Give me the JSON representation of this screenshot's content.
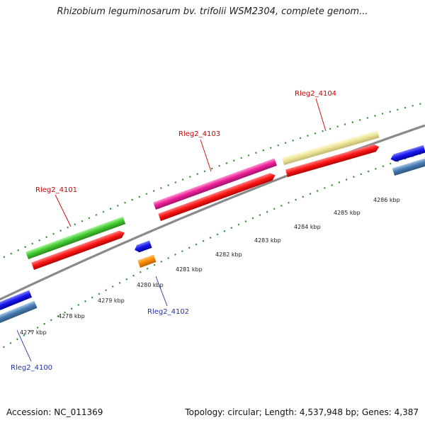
{
  "header": {
    "title": "Rhizobium leguminosarum bv. trifolii WSM2304, complete genom..."
  },
  "footer": {
    "accession": "Accession: NC_011369",
    "topology": "Topology: circular; Length: 4,537,948 bp; Genes: 4,387"
  },
  "map": {
    "backbone_color": "#808080",
    "tick_color": "#2e8b2e",
    "ticks_kbp": [
      "4277 kbp",
      "4278 kbp",
      "4279 kbp",
      "4280 kbp",
      "4281 kbp",
      "4282 kbp",
      "4283 kbp",
      "4284 kbp",
      "4285 kbp",
      "4286 kbp"
    ],
    "genes": [
      {
        "label": "Rleg2_4100",
        "strand": "reverse",
        "color": "#2233aa"
      },
      {
        "label": "Rleg2_4101",
        "strand": "forward",
        "color": "#cc0000"
      },
      {
        "label": "Rleg2_4102",
        "strand": "reverse",
        "color": "#2233aa"
      },
      {
        "label": "Rleg2_4103",
        "strand": "forward",
        "color": "#cc0000"
      },
      {
        "label": "Rleg2_4104",
        "strand": "forward",
        "color": "#cc0000"
      }
    ],
    "feature_colors": {
      "cds": "#ff1a1a",
      "green": "#44cc33",
      "magenta": "#ee2299",
      "khaki": "#eee699",
      "blue": "#1a1aee",
      "steelblue": "#4a7fb5",
      "orange": "#ff8c00"
    }
  }
}
